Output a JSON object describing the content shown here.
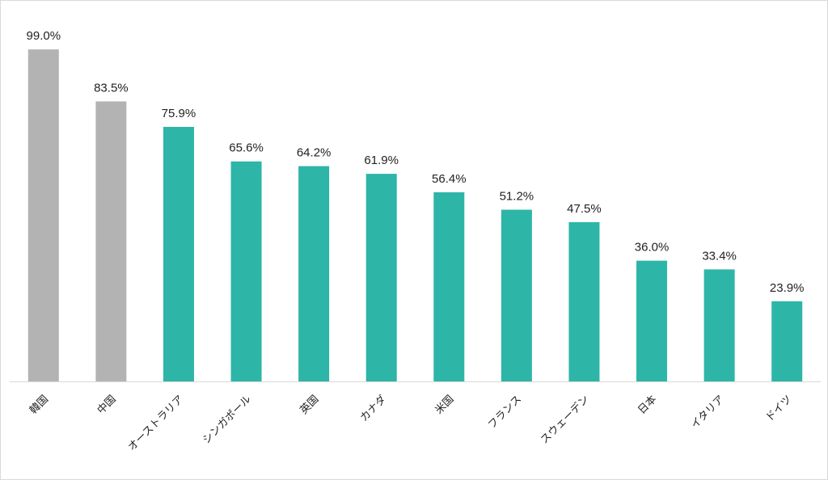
{
  "chart_data": {
    "type": "bar",
    "categories": [
      "韓国",
      "中国",
      "オーストラリア",
      "シンガポール",
      "英国",
      "カナダ",
      "米国",
      "フランス",
      "スウェーデン",
      "日本",
      "イタリア",
      "ドイツ"
    ],
    "values": [
      99.0,
      83.5,
      75.9,
      65.6,
      64.2,
      61.9,
      56.4,
      51.2,
      47.5,
      36.0,
      33.4,
      23.9
    ],
    "value_labels": [
      "99.0%",
      "83.5%",
      "75.9%",
      "65.6%",
      "64.2%",
      "61.9%",
      "56.4%",
      "51.2%",
      "47.5%",
      "36.0%",
      "33.4%",
      "23.9%"
    ],
    "colors": [
      "#b3b3b3",
      "#b3b3b3",
      "#2db5a8",
      "#2db5a8",
      "#2db5a8",
      "#2db5a8",
      "#2db5a8",
      "#2db5a8",
      "#2db5a8",
      "#2db5a8",
      "#2db5a8",
      "#2db5a8"
    ],
    "ylim": [
      0,
      100
    ]
  }
}
